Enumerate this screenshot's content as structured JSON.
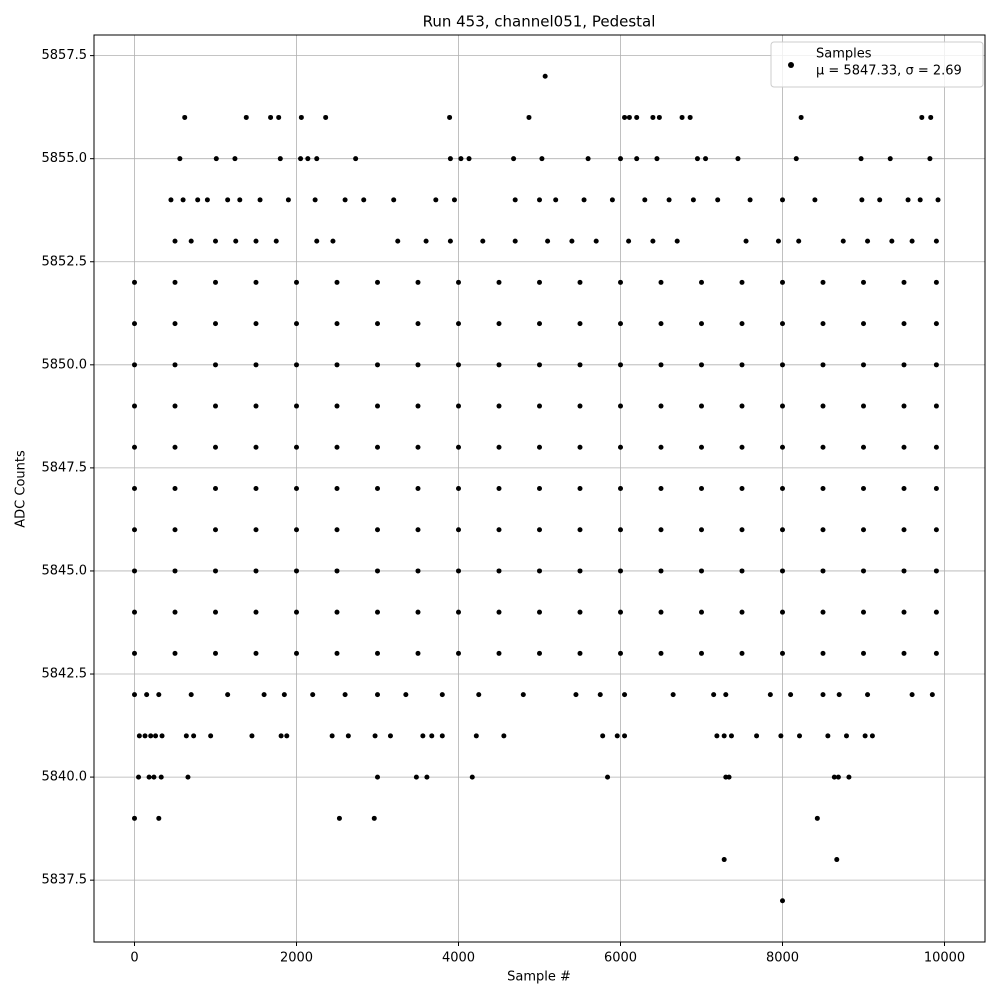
{
  "chart_data": {
    "type": "scatter",
    "title": "Run 453, channel051, Pedestal",
    "x_label": "Sample #",
    "y_label": "ADC Counts",
    "xlim": [
      -500,
      10500
    ],
    "ylim": [
      5836.0,
      5858.0
    ],
    "xticks": [
      0,
      2000,
      4000,
      6000,
      8000,
      10000
    ],
    "yticks": [
      5837.5,
      {
        "value": 5840,
        "label": "5840.0"
      },
      5842.5,
      {
        "value": 5845,
        "label": "5845.0"
      },
      5847.5,
      {
        "value": 5850,
        "label": "5850.0"
      },
      5852.5,
      {
        "value": 5855,
        "label": "5855.0"
      },
      5857.5
    ],
    "grid": true,
    "legend_position": "upper right",
    "legend_stats": "μ = 5847.33, σ = 2.69",
    "series": [
      {
        "name": "Samples",
        "color": "#000000",
        "x": [
          5070,
          620,
          1380,
          1680,
          1780,
          2060,
          2360,
          3890,
          4870,
          6050,
          6110,
          6200,
          6400,
          6480,
          6760,
          6860,
          8230,
          9720,
          9830,
          560,
          1010,
          1240,
          1800,
          2050,
          2140,
          2250,
          2730,
          3900,
          4030,
          4130,
          4680,
          5030,
          5600,
          6000,
          6200,
          6450,
          6950,
          7050,
          7450,
          8170,
          8970,
          9330,
          9820,
          450,
          600,
          780,
          900,
          1150,
          1300,
          1550,
          1900,
          2230,
          2600,
          2830,
          3200,
          3720,
          3950,
          4700,
          5000,
          5200,
          5550,
          5900,
          6300,
          6600,
          6900,
          7200,
          7600,
          8000,
          8400,
          8980,
          9200,
          9550,
          9700,
          9920,
          500,
          700,
          1000,
          1250,
          1500,
          1750,
          2250,
          2450,
          3250,
          3600,
          3900,
          4300,
          4700,
          5100,
          5400,
          5700,
          6100,
          6400,
          6700,
          7550,
          7950,
          8200,
          8750,
          9050,
          9350,
          9600,
          9900,
          0,
          500,
          1000,
          1500,
          2000,
          2500,
          3000,
          3500,
          4000,
          4500,
          5000,
          5500,
          6000,
          6500,
          7000,
          7500,
          8000,
          8500,
          9000,
          9500,
          9900,
          0,
          500,
          1000,
          1500,
          2000,
          2500,
          3000,
          3500,
          4000,
          4500,
          5000,
          5500,
          6000,
          6500,
          7000,
          7500,
          8000,
          8500,
          9000,
          9500,
          9900,
          0,
          500,
          1000,
          1500,
          2000,
          2500,
          3000,
          3500,
          4000,
          4500,
          5000,
          5500,
          6000,
          6500,
          7000,
          7500,
          8000,
          8500,
          9000,
          9500,
          9900,
          0,
          500,
          1000,
          1500,
          2000,
          2500,
          3000,
          3500,
          4000,
          4500,
          5000,
          5500,
          6000,
          6500,
          7000,
          7500,
          8000,
          8500,
          9000,
          9500,
          9900,
          0,
          500,
          1000,
          1500,
          2000,
          2500,
          3000,
          3500,
          4000,
          4500,
          5000,
          5500,
          6000,
          6500,
          7000,
          7500,
          8000,
          8500,
          9000,
          9500,
          9900,
          0,
          500,
          1000,
          1500,
          2000,
          2500,
          3000,
          3500,
          4000,
          4500,
          5000,
          5500,
          6000,
          6500,
          7000,
          7500,
          8000,
          8500,
          9000,
          9500,
          9900,
          0,
          500,
          1000,
          1500,
          2000,
          2500,
          3000,
          3500,
          4000,
          4500,
          5000,
          5500,
          6000,
          6500,
          7000,
          7500,
          8000,
          8500,
          9000,
          9500,
          9900,
          0,
          500,
          1000,
          1500,
          2000,
          2500,
          3000,
          3500,
          4000,
          4500,
          5000,
          5500,
          6000,
          6500,
          7000,
          7500,
          8000,
          8500,
          9000,
          9500,
          9900,
          0,
          500,
          1000,
          1500,
          2000,
          2500,
          3000,
          3500,
          4000,
          4500,
          5000,
          5500,
          6000,
          6500,
          7000,
          7500,
          8000,
          8500,
          9000,
          9500,
          9900,
          0,
          500,
          1000,
          1500,
          2000,
          2500,
          3000,
          3500,
          4000,
          4500,
          5000,
          5500,
          6000,
          6500,
          7000,
          7500,
          8000,
          8500,
          9000,
          9500,
          9900,
          0,
          150,
          300,
          700,
          1150,
          1600,
          1850,
          2200,
          2600,
          3000,
          3350,
          3800,
          4250,
          4800,
          5450,
          5750,
          6050,
          6650,
          7150,
          7300,
          7850,
          8100,
          8500,
          8700,
          9050,
          9600,
          9850,
          60,
          130,
          200,
          260,
          340,
          640,
          730,
          940,
          1450,
          1810,
          1880,
          2440,
          2640,
          2970,
          3160,
          3560,
          3670,
          3800,
          4220,
          4560,
          5780,
          5960,
          6050,
          7190,
          7280,
          7370,
          7680,
          7980,
          8210,
          8560,
          8790,
          9020,
          9110,
          50,
          180,
          240,
          330,
          660,
          3000,
          3480,
          3610,
          4170,
          5840,
          7300,
          7340,
          8640,
          8690,
          8820,
          0,
          300,
          2530,
          2960,
          8430,
          7280,
          8670,
          8000
        ],
        "values": [
          5857,
          5856,
          5856,
          5856,
          5856,
          5856,
          5856,
          5856,
          5856,
          5856,
          5856,
          5856,
          5856,
          5856,
          5856,
          5856,
          5856,
          5856,
          5856,
          5855,
          5855,
          5855,
          5855,
          5855,
          5855,
          5855,
          5855,
          5855,
          5855,
          5855,
          5855,
          5855,
          5855,
          5855,
          5855,
          5855,
          5855,
          5855,
          5855,
          5855,
          5855,
          5855,
          5855,
          5854,
          5854,
          5854,
          5854,
          5854,
          5854,
          5854,
          5854,
          5854,
          5854,
          5854,
          5854,
          5854,
          5854,
          5854,
          5854,
          5854,
          5854,
          5854,
          5854,
          5854,
          5854,
          5854,
          5854,
          5854,
          5854,
          5854,
          5854,
          5854,
          5854,
          5854,
          5853,
          5853,
          5853,
          5853,
          5853,
          5853,
          5853,
          5853,
          5853,
          5853,
          5853,
          5853,
          5853,
          5853,
          5853,
          5853,
          5853,
          5853,
          5853,
          5853,
          5853,
          5853,
          5853,
          5853,
          5853,
          5853,
          5853,
          5852,
          5852,
          5852,
          5852,
          5852,
          5852,
          5852,
          5852,
          5852,
          5852,
          5852,
          5852,
          5852,
          5852,
          5852,
          5852,
          5852,
          5852,
          5852,
          5852,
          5852,
          5851,
          5851,
          5851,
          5851,
          5851,
          5851,
          5851,
          5851,
          5851,
          5851,
          5851,
          5851,
          5851,
          5851,
          5851,
          5851,
          5851,
          5851,
          5851,
          5851,
          5851,
          5850,
          5850,
          5850,
          5850,
          5850,
          5850,
          5850,
          5850,
          5850,
          5850,
          5850,
          5850,
          5850,
          5850,
          5850,
          5850,
          5850,
          5850,
          5850,
          5850,
          5850,
          5849,
          5849,
          5849,
          5849,
          5849,
          5849,
          5849,
          5849,
          5849,
          5849,
          5849,
          5849,
          5849,
          5849,
          5849,
          5849,
          5849,
          5849,
          5849,
          5849,
          5849,
          5848,
          5848,
          5848,
          5848,
          5848,
          5848,
          5848,
          5848,
          5848,
          5848,
          5848,
          5848,
          5848,
          5848,
          5848,
          5848,
          5848,
          5848,
          5848,
          5848,
          5848,
          5847,
          5847,
          5847,
          5847,
          5847,
          5847,
          5847,
          5847,
          5847,
          5847,
          5847,
          5847,
          5847,
          5847,
          5847,
          5847,
          5847,
          5847,
          5847,
          5847,
          5847,
          5846,
          5846,
          5846,
          5846,
          5846,
          5846,
          5846,
          5846,
          5846,
          5846,
          5846,
          5846,
          5846,
          5846,
          5846,
          5846,
          5846,
          5846,
          5846,
          5846,
          5846,
          5845,
          5845,
          5845,
          5845,
          5845,
          5845,
          5845,
          5845,
          5845,
          5845,
          5845,
          5845,
          5845,
          5845,
          5845,
          5845,
          5845,
          5845,
          5845,
          5845,
          5845,
          5844,
          5844,
          5844,
          5844,
          5844,
          5844,
          5844,
          5844,
          5844,
          5844,
          5844,
          5844,
          5844,
          5844,
          5844,
          5844,
          5844,
          5844,
          5844,
          5844,
          5844,
          5843,
          5843,
          5843,
          5843,
          5843,
          5843,
          5843,
          5843,
          5843,
          5843,
          5843,
          5843,
          5843,
          5843,
          5843,
          5843,
          5843,
          5843,
          5843,
          5843,
          5843,
          5842,
          5842,
          5842,
          5842,
          5842,
          5842,
          5842,
          5842,
          5842,
          5842,
          5842,
          5842,
          5842,
          5842,
          5842,
          5842,
          5842,
          5842,
          5842,
          5842,
          5842,
          5842,
          5842,
          5842,
          5842,
          5842,
          5842,
          5841,
          5841,
          5841,
          5841,
          5841,
          5841,
          5841,
          5841,
          5841,
          5841,
          5841,
          5841,
          5841,
          5841,
          5841,
          5841,
          5841,
          5841,
          5841,
          5841,
          5841,
          5841,
          5841,
          5841,
          5841,
          5841,
          5841,
          5841,
          5841,
          5841,
          5841,
          5841,
          5841,
          5840,
          5840,
          5840,
          5840,
          5840,
          5840,
          5840,
          5840,
          5840,
          5840,
          5840,
          5840,
          5840,
          5840,
          5840,
          5839,
          5839,
          5839,
          5839,
          5839,
          5838,
          5838,
          5837
        ]
      }
    ]
  }
}
